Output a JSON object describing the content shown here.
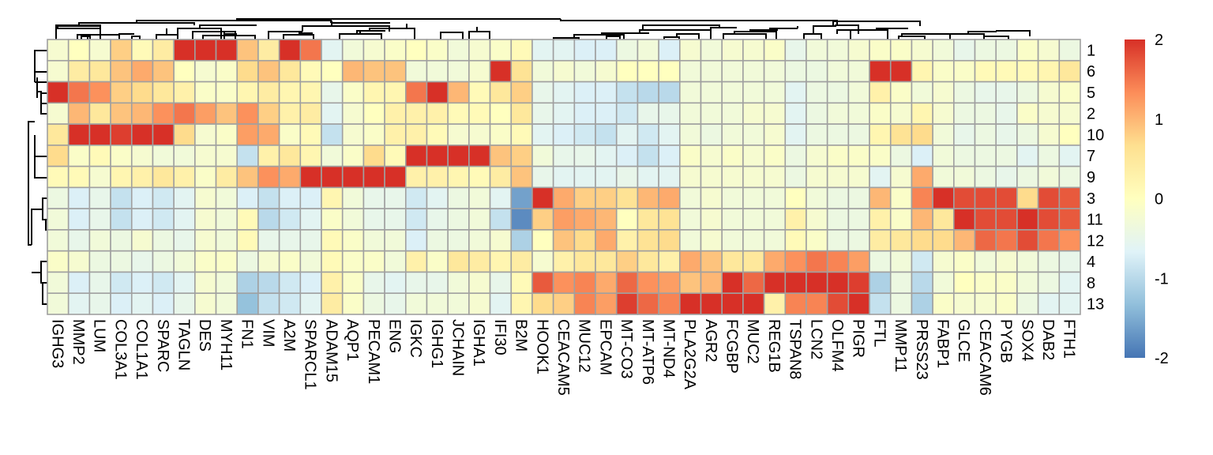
{
  "chart_data": {
    "type": "heatmap",
    "title": "",
    "row_labels": [
      "1",
      "6",
      "5",
      "2",
      "10",
      "7",
      "9",
      "3",
      "11",
      "12",
      "4",
      "8",
      "13"
    ],
    "col_labels": [
      "IGHG3",
      "MMP2",
      "LUM",
      "COL3A1",
      "COL1A1",
      "SPARC",
      "TAGLN",
      "DES",
      "MYH11",
      "FN1",
      "VIM",
      "A2M",
      "SPARCL1",
      "ADAM15",
      "AQP1",
      "PECAM1",
      "ENG",
      "IGKC",
      "IGHG1",
      "JCHAIN",
      "IGHA1",
      "IFI30",
      "B2M",
      "HOOK1",
      "CEACAM5",
      "MUC12",
      "EPCAM",
      "MT-CO3",
      "MT-ATP6",
      "MT-ND4",
      "PLA2G2A",
      "AGR2",
      "FCGBP",
      "MUC2",
      "REG1B",
      "TSPAN8",
      "LCN2",
      "OLFM4",
      "PIGR",
      "FTL",
      "MMP11",
      "PRSS23",
      "FABP1",
      "GLCE",
      "CEACAM6",
      "PYGB",
      "SOX4",
      "DAB2",
      "FTH1"
    ],
    "values": [
      [
        -0.2,
        0,
        -0.2,
        0.8,
        0.1,
        0.4,
        2,
        2,
        2,
        0.9,
        0.4,
        2,
        1.5,
        -0.6,
        -0.3,
        -0.2,
        -0.1,
        0,
        -0.1,
        -0.3,
        -0.2,
        -0.1,
        0.1,
        -0.6,
        -0.6,
        -0.7,
        -0.7,
        -0.4,
        -0.3,
        -0.7,
        -0.2,
        -0.3,
        -0.2,
        -0.2,
        -0.1,
        -0.5,
        -0.3,
        -0.3,
        -0.2,
        -0.1,
        -0.1,
        -0.2,
        -0.3,
        -0.5,
        -0.4,
        -0.4,
        -0.1,
        -0.2,
        -0.4
      ],
      [
        -0.2,
        0.4,
        0.5,
        0.9,
        1.1,
        0.9,
        0,
        -0.2,
        -0.1,
        0.7,
        0.9,
        0.5,
        0.1,
        0,
        1.0,
        0.9,
        0.9,
        -0.3,
        -0.3,
        -0.3,
        -0.2,
        2,
        0.6,
        -0.3,
        -0.2,
        -0.3,
        -0.2,
        0,
        0,
        0,
        -0.3,
        -0.3,
        -0.3,
        -0.3,
        -0.3,
        -0.4,
        -0.4,
        -0.3,
        -0.3,
        2,
        2,
        0.2,
        -0.1,
        -0.1,
        0.1,
        0.1,
        0.1,
        0.2,
        0.5
      ],
      [
        2,
        1.5,
        1.3,
        0.8,
        0.7,
        0.5,
        0.3,
        -0.1,
        -0.1,
        0.2,
        0.4,
        0.2,
        0.2,
        -0.5,
        -0.1,
        0.2,
        0.2,
        1.5,
        2,
        1.0,
        0.1,
        0.5,
        0.8,
        -0.5,
        -0.6,
        -0.7,
        -0.7,
        -0.9,
        -1.0,
        -1.0,
        -0.3,
        -0.3,
        -0.3,
        -0.3,
        -0.3,
        -0.6,
        -0.4,
        -0.4,
        -0.3,
        0.3,
        -0.1,
        -0.3,
        -0.2,
        -0.4,
        -0.5,
        -0.5,
        -0.4,
        -0.2,
        -0.1
      ],
      [
        -0.2,
        1.0,
        0.5,
        0.9,
        1.0,
        1.3,
        1.5,
        1.2,
        0.9,
        1.3,
        0.8,
        0.3,
        0.4,
        -0.6,
        -0.2,
        0,
        0.3,
        0.3,
        0.3,
        0.1,
        0.1,
        0,
        0.5,
        -0.5,
        -0.6,
        -0.7,
        -0.7,
        -0.8,
        -0.5,
        -0.5,
        -0.3,
        -0.3,
        -0.3,
        -0.2,
        -0.2,
        -0.6,
        -0.4,
        -0.3,
        -0.3,
        -0.1,
        -0.2,
        0.2,
        -0.2,
        -0.4,
        -0.4,
        -0.5,
        -0.1,
        -0.2,
        -0.2
      ],
      [
        0.5,
        2,
        2,
        1.9,
        2,
        2,
        0.7,
        -0.2,
        -0.1,
        1.2,
        1.1,
        -0.1,
        0.1,
        -0.9,
        -0.2,
        -0.1,
        0.3,
        0.3,
        0.1,
        -0.2,
        -0.2,
        -0.1,
        0.1,
        -0.6,
        -0.7,
        -0.8,
        -0.9,
        -0.6,
        -0.8,
        -0.6,
        -0.3,
        -0.4,
        -0.3,
        -0.3,
        -0.2,
        -0.6,
        -0.4,
        -0.4,
        -0.4,
        0.2,
        0.6,
        0.7,
        -0.3,
        -0.5,
        -0.4,
        -0.5,
        -0.4,
        -0.2,
        0
      ],
      [
        0.7,
        -0.1,
        0.1,
        -0.1,
        -0.2,
        -0.3,
        -0.3,
        -0.2,
        -0.2,
        -0.9,
        0.3,
        0.5,
        0.2,
        -0.3,
        -0.1,
        0.7,
        0.1,
        2,
        2,
        2,
        2,
        0.9,
        0.8,
        -0.3,
        -0.5,
        -0.5,
        -0.6,
        -0.7,
        -0.9,
        -0.7,
        -0.1,
        -0.2,
        -0.1,
        -0.2,
        -0.1,
        -0.4,
        -0.2,
        -0.1,
        -0.1,
        -0.1,
        -0.4,
        -0.7,
        -0.3,
        -0.4,
        -0.4,
        -0.4,
        -0.6,
        -0.4,
        -0.6
      ],
      [
        0.1,
        0.1,
        -0.2,
        0.2,
        0.3,
        0.5,
        0.3,
        -0.1,
        0.4,
        0.9,
        1.3,
        1.1,
        2,
        2,
        2,
        2,
        2,
        0.3,
        0.3,
        0.2,
        0.1,
        0.4,
        0.9,
        -0.5,
        -0.6,
        -0.6,
        -0.6,
        -0.5,
        -0.6,
        -0.6,
        -0.2,
        -0.2,
        -0.2,
        -0.2,
        -0.2,
        -0.4,
        -0.2,
        -0.2,
        -0.2,
        -0.6,
        -0.2,
        1.1,
        -0.3,
        -0.3,
        -0.4,
        -0.5,
        -0.4,
        -0.3,
        -0.4
      ],
      [
        -0.4,
        -0.7,
        -0.5,
        -0.9,
        -0.7,
        -0.8,
        -0.6,
        -0.2,
        -0.3,
        -0.7,
        -0.9,
        -0.7,
        -0.7,
        0.2,
        -0.3,
        -0.5,
        -0.5,
        -0.8,
        -0.6,
        -0.4,
        -0.3,
        -0.6,
        -1.6,
        2,
        1.1,
        0.8,
        0.8,
        0.6,
        1.0,
        1.1,
        -0.3,
        -0.2,
        -0.3,
        -0.3,
        -0.3,
        0,
        -0.3,
        -0.4,
        -0.4,
        1.0,
        -0.1,
        1.4,
        2,
        1.8,
        1.8,
        1.8,
        0.7,
        1.8,
        1.7
      ],
      [
        -0.3,
        -0.7,
        -0.5,
        -0.9,
        -0.7,
        -0.8,
        -0.6,
        -0.2,
        -0.3,
        0.1,
        -1.0,
        -0.8,
        -0.6,
        -0.1,
        -0.3,
        -0.5,
        -0.5,
        -0.8,
        -0.5,
        -0.4,
        -0.3,
        -0.9,
        -1.8,
        0.8,
        1.2,
        1.1,
        1.0,
        0,
        0.5,
        0.6,
        -0.3,
        -0.2,
        -0.3,
        -0.3,
        -0.3,
        0.3,
        -0.2,
        -0.4,
        -0.4,
        0.3,
        -0.1,
        1.0,
        0.5,
        2,
        1.8,
        1.8,
        2,
        1.8,
        1.7
      ],
      [
        -0.3,
        -0.5,
        -0.3,
        -0.4,
        -0.2,
        -0.4,
        -0.5,
        -0.2,
        -0.3,
        0.1,
        -0.5,
        -0.5,
        -0.5,
        0.1,
        -0.1,
        -0.3,
        -0.3,
        -0.7,
        -0.4,
        -0.4,
        -0.3,
        -0.2,
        -1.1,
        0,
        0.9,
        0.7,
        1.1,
        0.3,
        0.6,
        0.7,
        -0.3,
        -0.2,
        -0.3,
        -0.3,
        -0.3,
        0.1,
        -0.1,
        -0.4,
        -0.4,
        0.4,
        0.5,
        0.7,
        0.7,
        1.0,
        1.6,
        1.5,
        1.8,
        1.5,
        1.3
      ],
      [
        -0.1,
        -0.2,
        -0.4,
        -0.4,
        -0.5,
        -0.4,
        -0.3,
        -0.1,
        -0.1,
        -0.4,
        -0.2,
        -0.1,
        -0.3,
        0.1,
        -0.1,
        -0.1,
        -0.3,
        0.3,
        -0.1,
        0.5,
        0.4,
        0.2,
        0.4,
        -0.2,
        0.3,
        0.5,
        0.5,
        0.8,
        0.5,
        0.3,
        1.1,
        0.9,
        0.5,
        0.5,
        1.1,
        1.3,
        1.5,
        1.4,
        1.2,
        -0.4,
        -0.3,
        -0.8,
        -0.2,
        -0.1,
        -0.3,
        -0.2,
        -0.3,
        -0.4,
        -0.5
      ],
      [
        -0.3,
        -0.7,
        -0.5,
        -0.8,
        -0.7,
        -0.8,
        -0.6,
        -0.2,
        -0.3,
        -1.1,
        -1.0,
        -0.8,
        -0.7,
        0.3,
        -0.1,
        -0.5,
        -0.6,
        -0.5,
        -0.5,
        -0.3,
        -0.2,
        -0.5,
        0.1,
        1.7,
        1.3,
        1.4,
        1.1,
        1.6,
        1.3,
        1.2,
        0.9,
        1.0,
        2,
        1.6,
        2,
        2,
        2,
        2,
        1.9,
        -1.1,
        -0.4,
        -1.0,
        -0.3,
        0,
        -0.1,
        -0.1,
        -0.3,
        -0.4,
        -0.6
      ],
      [
        -0.3,
        -0.6,
        -0.5,
        -0.7,
        -0.6,
        -0.7,
        -0.5,
        -0.2,
        -0.3,
        -1.3,
        -0.9,
        -0.8,
        -0.6,
        0.4,
        -0.1,
        -0.4,
        -0.5,
        -0.3,
        -0.3,
        -0.3,
        -0.2,
        -0.6,
        0.2,
        0.7,
        0.8,
        1.4,
        1.2,
        1.9,
        1.6,
        1.4,
        2,
        2,
        2,
        2,
        0.3,
        1.4,
        1.4,
        1.8,
        2,
        -0.9,
        -0.4,
        -1.1,
        -0.1,
        -0.2,
        -0.2,
        -0.1,
        -0.4,
        -0.6,
        -0.6
      ]
    ],
    "color_scale": {
      "min": -2,
      "max": 2,
      "stops": [
        "#4575B4",
        "#91BFDB",
        "#E0F3F8",
        "#FFFFBF",
        "#FEE090",
        "#FC8D59",
        "#D73027"
      ],
      "ticks": [
        2,
        1,
        0,
        -1,
        -2
      ],
      "tick_labels": [
        "2",
        "1",
        "0",
        "-1",
        "-2"
      ]
    },
    "cell_border_color": "#A0A0A0",
    "row_dendrogram": true,
    "col_dendrogram": true,
    "legend_position": "right"
  }
}
